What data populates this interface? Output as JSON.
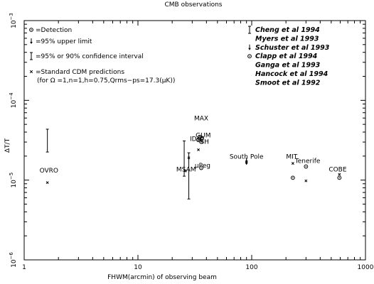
{
  "chart_data": {
    "type": "scatter",
    "title": "CMB observations",
    "xlabel": "FHWM(arcmin) of observing beam",
    "ylabel": "ΔT/T",
    "xscale": "log",
    "yscale": "log",
    "xlim": [
      1,
      1000
    ],
    "ylim": [
      1e-06,
      0.001
    ],
    "x_ticks": [
      {
        "value": 1,
        "label": "1"
      },
      {
        "value": 10,
        "label": "10"
      },
      {
        "value": 100,
        "label": "100"
      },
      {
        "value": 1000,
        "label": "1000"
      }
    ],
    "y_ticks": [
      {
        "value": 1e-06,
        "base": "10",
        "exp": "−6"
      },
      {
        "value": 1e-05,
        "base": "10",
        "exp": "−5"
      },
      {
        "value": 0.0001,
        "base": "10",
        "exp": "−4"
      },
      {
        "value": 0.001,
        "base": "10",
        "exp": "−3"
      }
    ],
    "legend": [
      {
        "marker": "circle",
        "text": "=Detection"
      },
      {
        "marker": "arrow",
        "text": "=95% upper limit"
      },
      {
        "marker": "bar",
        "text": "=95% or 90% confidence interval"
      },
      {
        "marker": "cross",
        "text": "=Standard CDM predictions"
      },
      {
        "marker": "none",
        "text": "(for Ω =1,n=1,h=0.75,Qrms−ps=17.3(μK))"
      }
    ],
    "references": [
      {
        "marker": "bar",
        "text": "Cheng et al 1994"
      },
      {
        "marker": "none",
        "text": "Myers et al 1993"
      },
      {
        "marker": "arrow",
        "text": "Schuster et al 1993"
      },
      {
        "marker": "circle",
        "text": "Clapp et al 1994"
      },
      {
        "marker": "none",
        "text": "Ganga et al 1993"
      },
      {
        "marker": "none",
        "text": "Hancock et al 1994"
      },
      {
        "marker": "none",
        "text": "Smoot et al 1992"
      }
    ],
    "experiment_labels": [
      {
        "text": "OVRO",
        "x": 1.65,
        "y": 1.25e-05
      },
      {
        "text": "MAX",
        "x": 36,
        "y": 5.6e-05
      },
      {
        "text": "GUM",
        "x": 37.5,
        "y": 3.45e-05
      },
      {
        "text": "IDsp",
        "x": 33,
        "y": 3.1e-05
      },
      {
        "text": "SH",
        "x": 38.5,
        "y": 2.85e-05
      },
      {
        "text": "MSAM",
        "x": 26.5,
        "y": 1.28e-05
      },
      {
        "text": "μPeg",
        "x": 37,
        "y": 1.43e-05
      },
      {
        "text": "South Pole",
        "x": 90,
        "y": 1.85e-05
      },
      {
        "text": "MIT",
        "x": 225,
        "y": 1.85e-05
      },
      {
        "text": "Tenerife",
        "x": 310,
        "y": 1.64e-05
      },
      {
        "text": "COBE",
        "x": 570,
        "y": 1.28e-05
      }
    ],
    "detections": [
      {
        "x": 35,
        "y": 3.48e-05
      },
      {
        "x": 36.5,
        "y": 3.38e-05
      },
      {
        "x": 36,
        "y": 3.02e-05
      },
      {
        "x": 34,
        "y": 3.18e-05
      },
      {
        "x": 36,
        "y": 1.42e-05
      },
      {
        "x": 230,
        "y": 1.07e-05
      },
      {
        "x": 300,
        "y": 1.48e-05
      },
      {
        "x": 590,
        "y": 1.07e-05
      }
    ],
    "upper_limits": [
      {
        "x": 90,
        "y": 1.68e-05
      },
      {
        "x": 90,
        "y": 1.76e-05
      }
    ],
    "intervals": [
      {
        "x": 1.6,
        "low": 2.25e-05,
        "high": 4.35e-05
      },
      {
        "x": 25.5,
        "low": 1.12e-05,
        "high": 3.1e-05
      },
      {
        "x": 28,
        "low": 5.8e-06,
        "high": 2.2e-05
      }
    ],
    "cdm_predictions": [
      {
        "x": 1.6,
        "y": 9.3e-06
      },
      {
        "x": 26,
        "y": 1.3e-05
      },
      {
        "x": 28,
        "y": 1.9e-05
      },
      {
        "x": 34,
        "y": 2.4e-05
      },
      {
        "x": 90,
        "y": 1.7e-05
      },
      {
        "x": 230,
        "y": 1.62e-05
      },
      {
        "x": 300,
        "y": 9.8e-06
      },
      {
        "x": 590,
        "y": 1.18e-05
      }
    ]
  }
}
